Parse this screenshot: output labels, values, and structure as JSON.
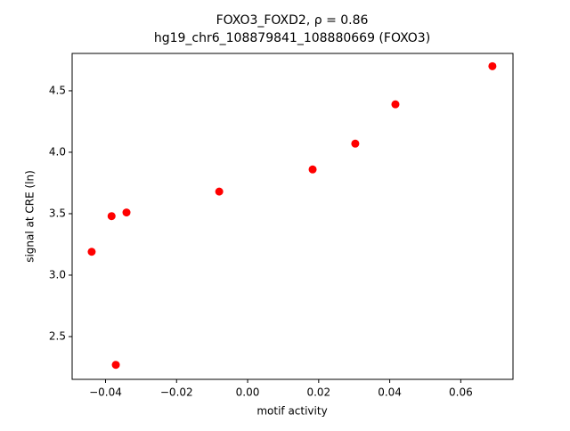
{
  "chart_data": {
    "type": "scatter",
    "title": "FOXO3_FOXD2, ρ = 0.86",
    "subtitle": "hg19_chr6_108879841_108880669 (FOXO3)",
    "x_label": "motif activity",
    "y_label": "signal at CRE (ln)",
    "x": [
      -0.0439,
      -0.0383,
      -0.0371,
      -0.0341,
      -0.008,
      0.0183,
      0.0303,
      0.0416,
      0.0689
    ],
    "values": [
      3.19,
      3.48,
      2.27,
      3.51,
      3.68,
      3.86,
      4.07,
      4.39,
      4.7
    ],
    "color": "#ff0000",
    "xlim": [
      -0.0494,
      0.0747
    ],
    "ylim": [
      2.152,
      4.804
    ],
    "xticks": [
      {
        "value": -0.04,
        "label": "−0.04"
      },
      {
        "value": -0.02,
        "label": "−0.02"
      },
      {
        "value": 0,
        "label": "0.00"
      },
      {
        "value": 0.02,
        "label": "0.02"
      },
      {
        "value": 0.04,
        "label": "0.04"
      },
      {
        "value": 0.06,
        "label": "0.06"
      }
    ],
    "yticks": [
      {
        "value": 2.5,
        "label": "2.5"
      },
      {
        "value": 3,
        "label": "3.0"
      },
      {
        "value": 3.5,
        "label": "3.5"
      },
      {
        "value": 4,
        "label": "4.0"
      },
      {
        "value": 4.5,
        "label": "4.5"
      }
    ],
    "grid": false
  }
}
